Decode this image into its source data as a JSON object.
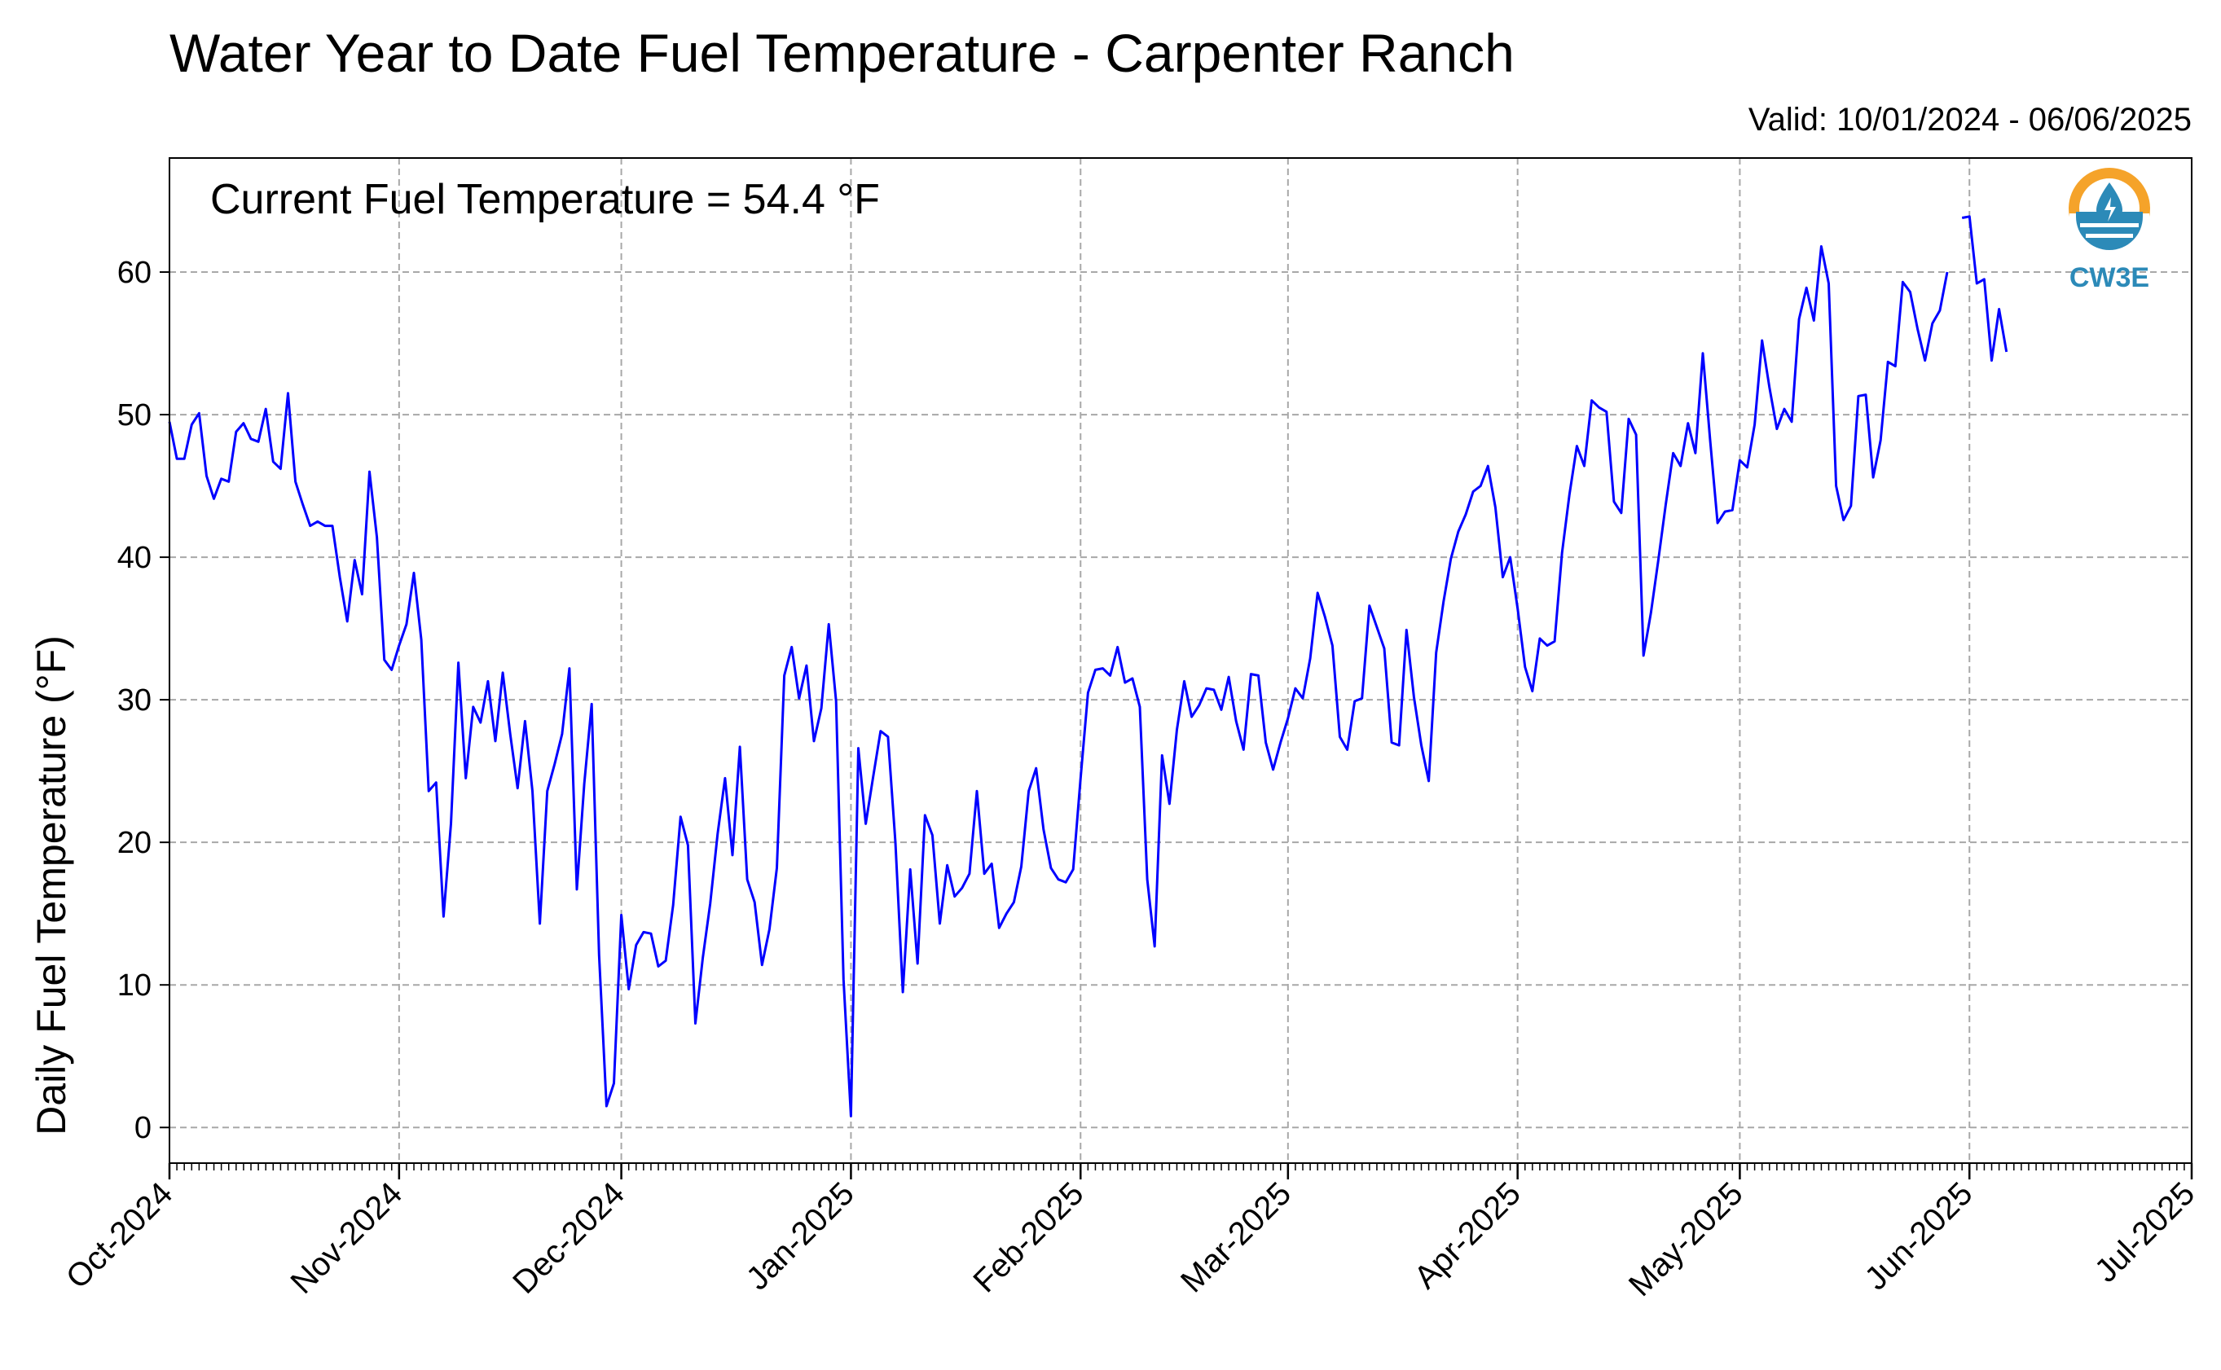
{
  "chart_data": {
    "type": "line",
    "title": "Water Year to Date Fuel Temperature - Carpenter Ranch",
    "subtitle": "Valid: 10/01/2024 - 06/06/2025",
    "annotation": "Current Fuel Temperature = 54.4  °F",
    "ylabel": "Daily Fuel Temperature (°F)",
    "xlabel": "",
    "ylim": [
      -2.5,
      68
    ],
    "yticks": [
      0,
      10,
      20,
      30,
      40,
      50,
      60
    ],
    "xlim": [
      "2024-10-01",
      "2025-07-01"
    ],
    "xticks": [
      "Oct-2024",
      "Nov-2024",
      "Dec-2024",
      "Jan-2025",
      "Feb-2025",
      "Mar-2025",
      "Apr-2025",
      "May-2025",
      "Jun-2025",
      "Jul-2025"
    ],
    "grid": true,
    "line_color": "#0000ff",
    "series": [
      {
        "segments": [
          {
            "start": "2024-10-01",
            "values": [
              49.5,
              46.9,
              46.9,
              49.3,
              50.1,
              45.7,
              44.1,
              45.5,
              45.3,
              48.8,
              49.4,
              48.3,
              48.1,
              50.4,
              46.7,
              46.2,
              51.5,
              45.3,
              43.7,
              42.2,
              42.5,
              42.2,
              42.2,
              38.6,
              35.5,
              39.8,
              37.4,
              46.0,
              41.4,
              32.8,
              32.1,
              33.8,
              35.3,
              38.9,
              34.2,
              23.6,
              24.2,
              14.8,
              21.3,
              32.6,
              24.5,
              29.5,
              28.4,
              31.3,
              27.1,
              31.9,
              27.6,
              23.8,
              28.5,
              23.6,
              14.3,
              23.6,
              25.5,
              27.6,
              32.2,
              16.7,
              24.1,
              29.7,
              12.1,
              1.5,
              3.1,
              14.9,
              9.7,
              12.8,
              13.7,
              13.6,
              11.3,
              11.7,
              15.6,
              21.8,
              19.8,
              7.3,
              11.9,
              15.7,
              20.6,
              24.5,
              19.1,
              26.7,
              17.4,
              15.8,
              11.4,
              13.9,
              18.2,
              31.7,
              33.7,
              30.1,
              32.4,
              27.1,
              29.4,
              35.3,
              29.9,
              10.4,
              0.8,
              26.6,
              21.3,
              24.6,
              27.8,
              27.4,
              20.0,
              9.5,
              18.1,
              11.5,
              21.9,
              20.5,
              14.3,
              18.4,
              16.2,
              16.8,
              17.8,
              23.6,
              17.8,
              18.5,
              14.0,
              15.0,
              15.8,
              18.3,
              23.6,
              25.2,
              20.9,
              18.2,
              17.4,
              17.2,
              18.1,
              24.5,
              30.5,
              32.1,
              32.2,
              31.7,
              33.7,
              31.2,
              31.5,
              29.5,
              17.4,
              12.7,
              26.1,
              22.7,
              27.9,
              31.3,
              28.8,
              29.6,
              30.8,
              30.7,
              29.3,
              31.6,
              28.5,
              26.5,
              31.8,
              31.7,
              27.0,
              25.1,
              27.0,
              28.7,
              30.8,
              30.1,
              32.9,
              37.5,
              35.8,
              33.8,
              27.4,
              26.5,
              29.9,
              30.1,
              36.6,
              35.1,
              33.6,
              27.0,
              26.8,
              34.9,
              30.2,
              26.8,
              24.3,
              33.3,
              36.9,
              39.9,
              41.8,
              43.0,
              44.6,
              45.0,
              46.4,
              43.5,
              38.6,
              40.0,
              36.4,
              32.3,
              30.6,
              34.3,
              33.8,
              34.1,
              40.3,
              44.4,
              47.8,
              46.4,
              51.0,
              50.5,
              50.2,
              43.9,
              43.1,
              49.7,
              48.6,
              33.1,
              36.1,
              39.8,
              43.7,
              47.3,
              46.4,
              49.4,
              47.3,
              54.3,
              48.2,
              42.4,
              43.2,
              43.3,
              46.8,
              46.3,
              49.3,
              55.2,
              51.9,
              49.0,
              50.4,
              49.5,
              56.7,
              58.9,
              56.6,
              61.8,
              59.2,
              45.0,
              42.6,
              43.6,
              51.3,
              51.4,
              45.6,
              48.2,
              53.7,
              53.4,
              59.3,
              58.6,
              56.0,
              53.8,
              56.4,
              57.3,
              60.0
            ]
          },
          {
            "start": "2025-05-31",
            "values": [
              63.8,
              63.9,
              59.2,
              59.5,
              53.8,
              57.4,
              54.4
            ]
          }
        ]
      }
    ]
  },
  "logo": {
    "text": "CW3E",
    "icon": "cw3e-logo-icon",
    "colors": {
      "sun": "#f5a32a",
      "water": "#2c8ab8"
    }
  }
}
